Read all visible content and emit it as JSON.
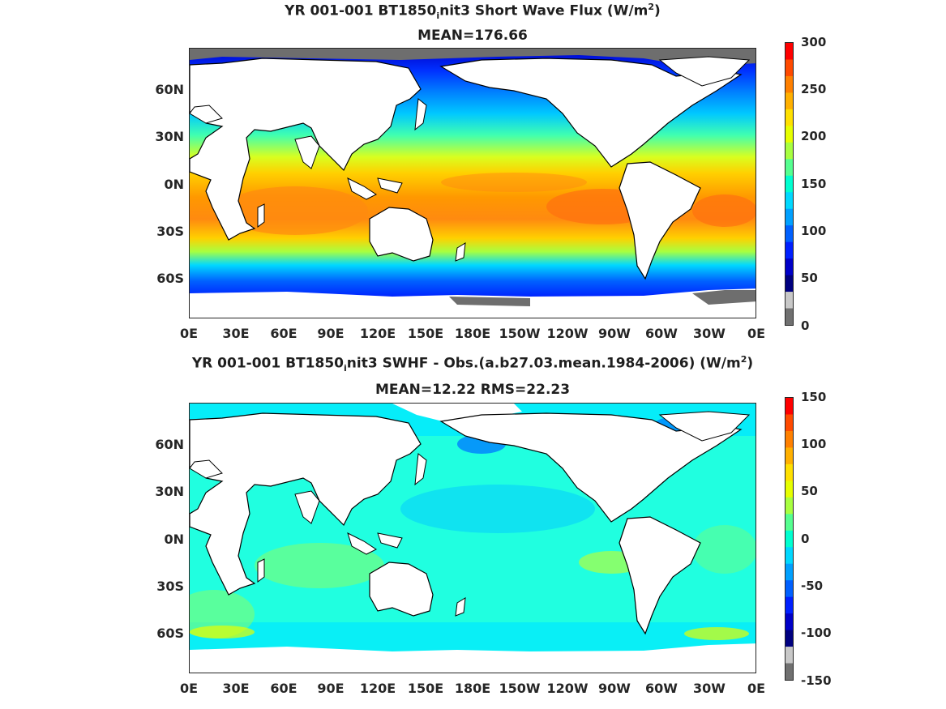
{
  "panel1": {
    "title_prefix": "YR 001-001 BT1850",
    "title_sub": "i",
    "title_mid": "nit3  Short Wave Flux (W/m",
    "title_sup": "2",
    "title_end": ")",
    "subtitle": "MEAN=176.66",
    "colorbar_labels": [
      "300",
      "250",
      "200",
      "150",
      "100",
      "50",
      "0"
    ],
    "colors": [
      "#ff0000",
      "#ff4a00",
      "#ff8000",
      "#ffb000",
      "#ffe000",
      "#e6ff00",
      "#a8ff40",
      "#55ff90",
      "#00ffd0",
      "#00d8ff",
      "#00a0ff",
      "#0060ff",
      "#0020ff",
      "#0000c8",
      "#000080",
      "#c8c8c8",
      "#707070"
    ]
  },
  "panel2": {
    "title_prefix": "YR 001-001 BT1850",
    "title_sub": "i",
    "title_mid": "nit3 SWHF - Obs.(a.b27.03.mean.1984-2006) (W/m",
    "title_sup": "2",
    "title_end": ")",
    "subtitle": "MEAN=12.22 RMS=22.23",
    "colorbar_labels": [
      "150",
      "100",
      "50",
      "0",
      "-50",
      "-100",
      "-150"
    ],
    "colors": [
      "#ff0000",
      "#ff4a00",
      "#ff8000",
      "#ffb000",
      "#ffe000",
      "#e6ff00",
      "#a8ff40",
      "#55ff90",
      "#00ffd0",
      "#00d8ff",
      "#00a0ff",
      "#0060ff",
      "#0020ff",
      "#0000c8",
      "#000080",
      "#c8c8c8",
      "#707070"
    ]
  },
  "y_labels": [
    "60N",
    "30N",
    "0N",
    "30S",
    "60S"
  ],
  "x_labels": [
    "0E",
    "30E",
    "60E",
    "90E",
    "120E",
    "150E",
    "180E",
    "150W",
    "120W",
    "90W",
    "60W",
    "30W",
    "0E"
  ]
}
